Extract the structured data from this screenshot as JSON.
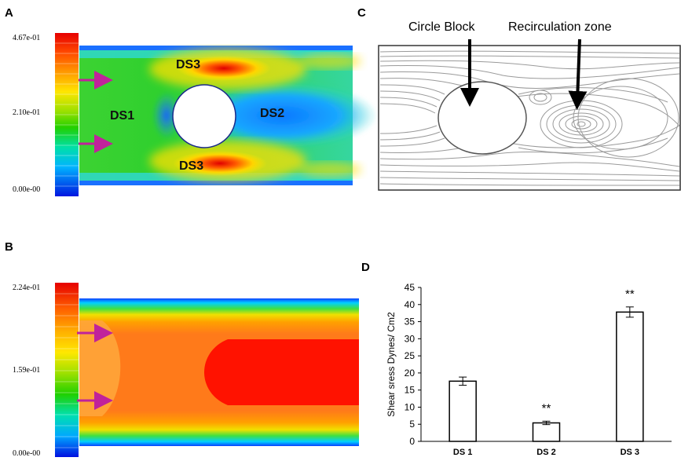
{
  "panels": {
    "a": {
      "label": "A",
      "colorbar_ticks": [
        "4.67e-01",
        "2.10e-01",
        "0.00e-00"
      ],
      "regions": [
        "DS1",
        "DS2",
        "DS3",
        "DS3"
      ]
    },
    "b": {
      "label": "B",
      "colorbar_ticks": [
        "2.24e-01",
        "1.59e-01",
        "0.00e-00"
      ]
    },
    "c": {
      "label": "C",
      "labels": [
        "Circle Block",
        "Recirculation zone"
      ]
    },
    "d": {
      "label": "D"
    }
  },
  "colors": {
    "arrow": "#c0229b",
    "bar_fill": "#ffffff",
    "bar_stroke": "#000000"
  },
  "chart_data": {
    "type": "bar",
    "categories": [
      "DS 1",
      "DS 2",
      "DS 3"
    ],
    "values": [
      17.6,
      5.4,
      37.8
    ],
    "errors": [
      1.2,
      0.5,
      1.5
    ],
    "annotations": [
      "",
      "**",
      "**"
    ],
    "ylabel": "Shear sress Dynes/ Cm2",
    "xlabel": "",
    "title": "",
    "ylim": [
      0,
      45
    ],
    "yticks": [
      0,
      5,
      10,
      15,
      20,
      25,
      30,
      35,
      40,
      45
    ],
    "grid": false
  }
}
